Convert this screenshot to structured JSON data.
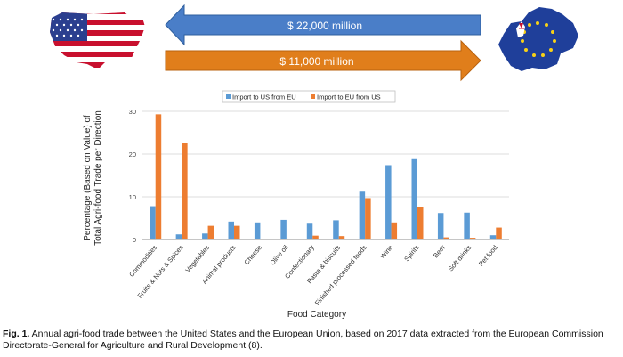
{
  "banner": {
    "arrow_top_label": "$ 22,000 million",
    "arrow_bottom_label": "$ 11,000 million",
    "arrow_top_color": "#4a7ec8",
    "arrow_bottom_color": "#e07e1b",
    "left_map": "usa-flag-map-icon",
    "right_map": "eu-flag-map-icon"
  },
  "caption": {
    "label": "Fig. 1.",
    "text": " Annual agri-food trade between the United States and the European Union, based on 2017 data extracted from the European Commission Directorate-General for Agriculture and Rural Development (8)."
  },
  "chart_data": {
    "type": "bar",
    "title": "",
    "xlabel": "Food Category",
    "ylabel": "Percentage (Based on Value) of Total Agri-food Trade per Direction",
    "ylim": [
      0,
      30
    ],
    "yticks": [
      0,
      10,
      20,
      30
    ],
    "grid": true,
    "legend_position": "top",
    "categories": [
      "Commodities",
      "Fruits & Nuts & Spices",
      "Vegetables",
      "Animal products",
      "Cheese",
      "Olive oil",
      "Confectionary",
      "Pasta & biscuits",
      "Finished processed foods",
      "Wine",
      "Spirits",
      "Beer",
      "Soft drinks",
      "Pet food"
    ],
    "series": [
      {
        "name": "Import to US from EU",
        "color": "#5b9bd5",
        "values": [
          7.8,
          1.2,
          1.4,
          4.2,
          4.0,
          4.6,
          3.7,
          4.5,
          11.2,
          17.4,
          18.8,
          6.2,
          6.3,
          1.0
        ]
      },
      {
        "name": "Import to EU from US",
        "color": "#ed7d31",
        "values": [
          29.3,
          22.5,
          3.2,
          3.2,
          0.0,
          0.0,
          0.9,
          0.8,
          9.7,
          4.0,
          7.5,
          0.5,
          0.4,
          2.8
        ]
      }
    ]
  }
}
